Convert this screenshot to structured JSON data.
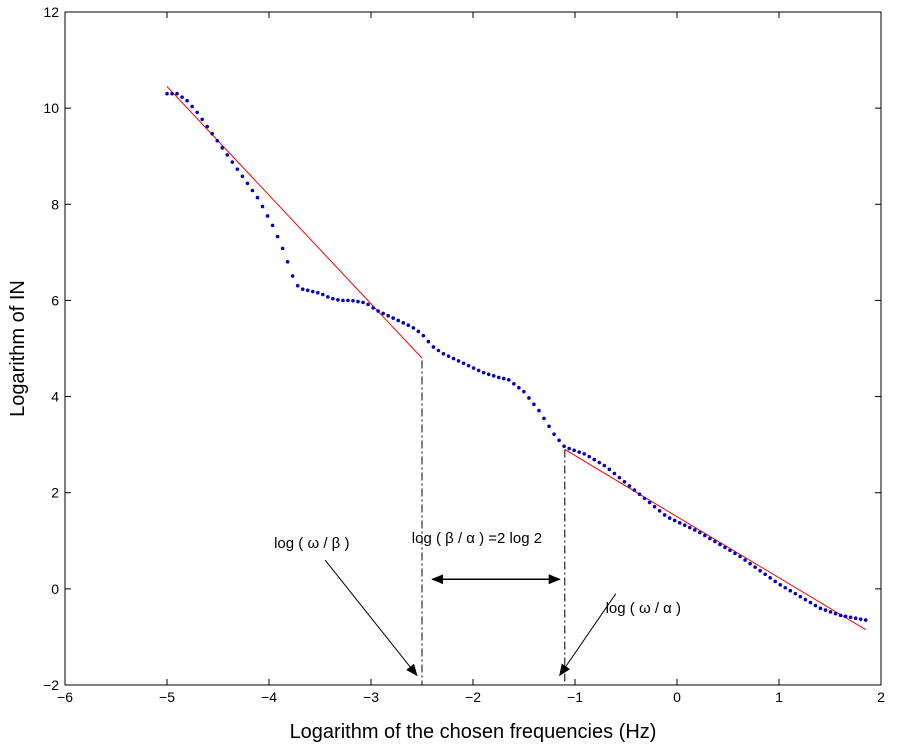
{
  "chart_data": {
    "type": "scatter",
    "title": "",
    "xlabel": "Logarithm of the chosen frequencies (Hz)",
    "ylabel": "Logarithm of IN",
    "xlim": [
      -6,
      2
    ],
    "ylim": [
      -2,
      12
    ],
    "xticks": [
      -6,
      -5,
      -4,
      -3,
      -2,
      -1,
      0,
      1,
      2
    ],
    "yticks": [
      -2,
      0,
      2,
      4,
      6,
      8,
      10,
      12
    ],
    "xtick_labels": [
      "−6",
      "−5",
      "−4",
      "−3",
      "−2",
      "−1",
      "0",
      "1",
      "2"
    ],
    "ytick_labels": [
      "−2",
      "0",
      "2",
      "4",
      "6",
      "8",
      "10",
      "12"
    ],
    "grid": false,
    "legend": "none",
    "dots_color": "#0000cc",
    "fit_color": "#ff0000",
    "dots_keypoints": {
      "x": [
        -5.0,
        -4.9,
        -4.8,
        -4.7,
        -4.5,
        -4.3,
        -4.1,
        -3.95,
        -3.85,
        -3.8,
        -3.75,
        -3.7,
        -3.6,
        -3.5,
        -3.4,
        -3.3,
        -3.2,
        -3.05,
        -2.95,
        -2.8,
        -2.6,
        -2.5,
        -2.4,
        -2.3,
        -2.1,
        -1.9,
        -1.75,
        -1.65,
        -1.5,
        -1.35,
        -1.2,
        -1.1,
        -0.9,
        -0.7,
        -0.5,
        -0.3,
        -0.1,
        0.0,
        0.2,
        0.4,
        0.6,
        0.8,
        1.0,
        1.2,
        1.4,
        1.6,
        1.85
      ],
      "y": [
        10.3,
        10.3,
        10.15,
        9.9,
        9.3,
        8.7,
        8.1,
        7.5,
        7.0,
        6.7,
        6.4,
        6.25,
        6.2,
        6.15,
        6.05,
        6.0,
        6.0,
        5.95,
        5.8,
        5.65,
        5.45,
        5.3,
        5.05,
        4.9,
        4.7,
        4.5,
        4.4,
        4.35,
        4.1,
        3.7,
        3.2,
        2.95,
        2.8,
        2.55,
        2.2,
        1.85,
        1.5,
        1.4,
        1.2,
        0.95,
        0.7,
        0.4,
        0.1,
        -0.15,
        -0.4,
        -0.55,
        -0.65
      ]
    },
    "fit_lines": [
      {
        "x": [
          -5.0,
          -2.5
        ],
        "y": [
          10.45,
          4.8
        ]
      },
      {
        "x": [
          -1.1,
          1.85
        ],
        "y": [
          2.9,
          -0.85
        ]
      }
    ],
    "vertical_lines": [
      {
        "x": -2.5,
        "y_top": 4.75
      },
      {
        "x": -1.1,
        "y_top": 2.9
      }
    ],
    "annotations": [
      {
        "text": "log ( ω / β )",
        "x": -3.95,
        "y": 0.85
      },
      {
        "text": "log ( β / α ) =2 log 2",
        "x": -2.6,
        "y": 0.95
      },
      {
        "text": "log ( ω / α )",
        "x": -0.7,
        "y": -0.5
      }
    ],
    "arrows": [
      {
        "from": [
          -3.45,
          0.6
        ],
        "to": [
          -2.55,
          -1.8
        ]
      },
      {
        "from": [
          -0.6,
          -0.1
        ],
        "to": [
          -1.15,
          -1.8
        ]
      }
    ],
    "double_arrow": {
      "x1": -2.4,
      "x2": -1.15,
      "y": 0.2
    }
  }
}
